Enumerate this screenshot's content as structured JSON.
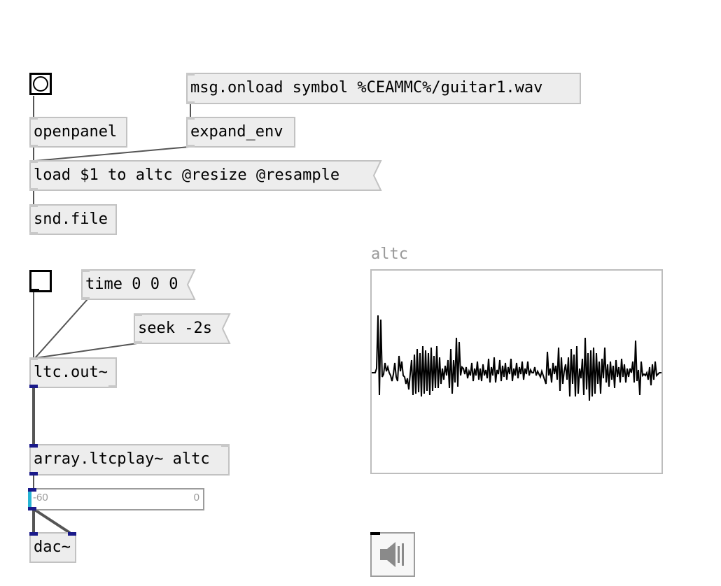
{
  "patch": {
    "objects": {
      "msg_onload": "msg.onload symbol %CEAMMC%/guitar1.wav",
      "openpanel": "openpanel",
      "expand_env": "expand_env",
      "load_msg": "load $1 to altc @resize @resample",
      "snd_file": "snd.file",
      "time_msg": "time 0 0 0",
      "seek_msg": "seek -2s",
      "ltc_out": "ltc.out~",
      "ltcplay": "array.ltcplay~ altc",
      "dac": "dac~"
    },
    "slider": {
      "min_label": "-60",
      "max_label": "0",
      "value": -60
    },
    "array": {
      "name": "altc"
    },
    "icons": {
      "bang": "bang-circle-icon",
      "toggle": "toggle-icon",
      "speaker": "speaker-icon"
    },
    "colors": {
      "object_bg": "#ededed",
      "object_border": "#c2c2c2",
      "signal_port": "#1a1a8a",
      "slider_knob": "#27b4d4",
      "array_label": "#9a9a9a"
    }
  }
}
